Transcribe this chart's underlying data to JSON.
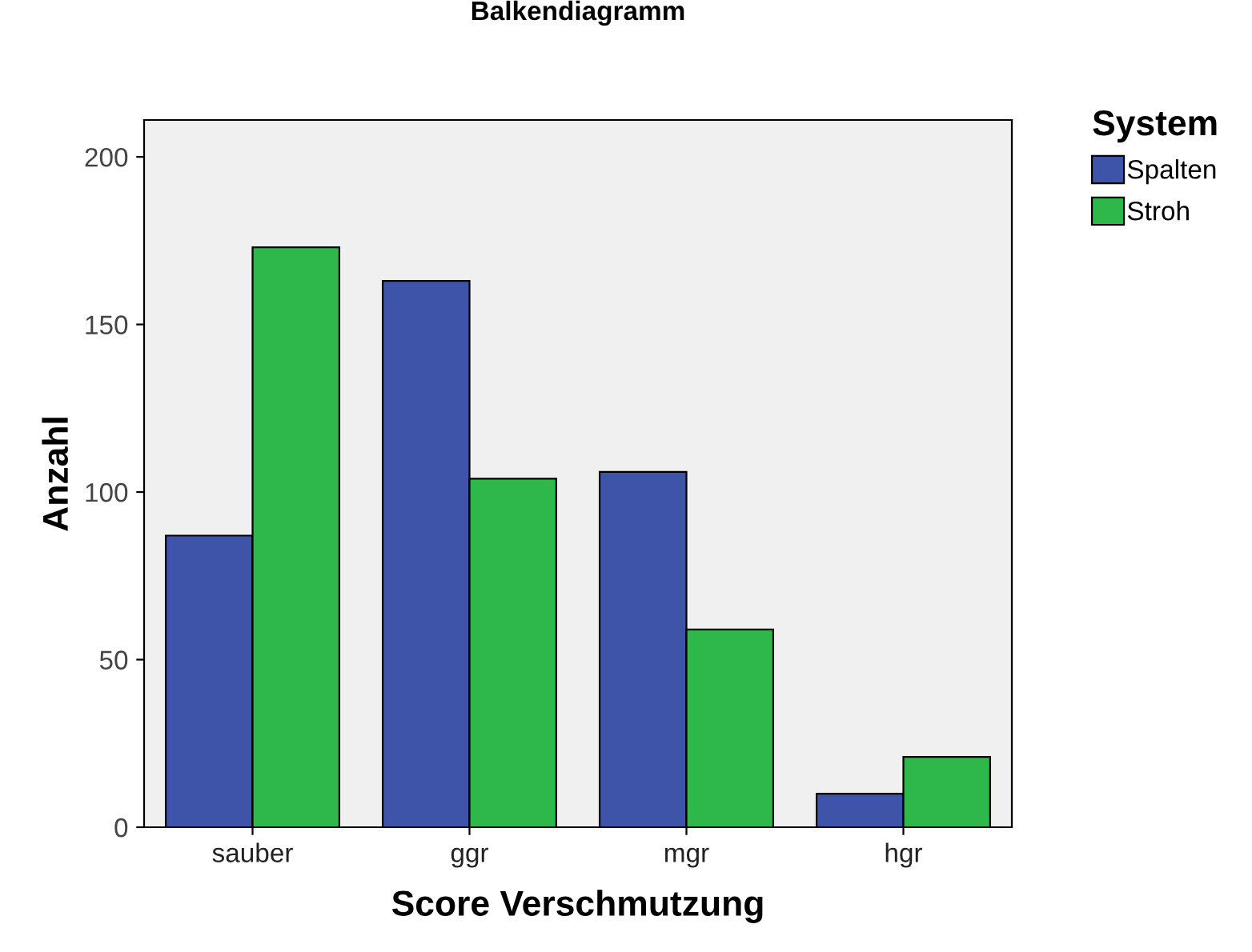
{
  "chart_data": {
    "type": "bar",
    "title": "Balkendiagramm",
    "xlabel": "Score Verschmutzung",
    "ylabel": "Anzahl",
    "legend_title": "System",
    "categories": [
      "sauber",
      "ggr",
      "mgr",
      "hgr"
    ],
    "series": [
      {
        "name": "Spalten",
        "color": "#3e54a8",
        "values": [
          87,
          163,
          106,
          10
        ]
      },
      {
        "name": "Stroh",
        "color": "#2fb84a",
        "values": [
          173,
          104,
          59,
          21
        ]
      }
    ],
    "ylim": [
      0,
      211
    ],
    "yticks": [
      0,
      50,
      100,
      150,
      200
    ],
    "grid": false,
    "legend": "right"
  }
}
